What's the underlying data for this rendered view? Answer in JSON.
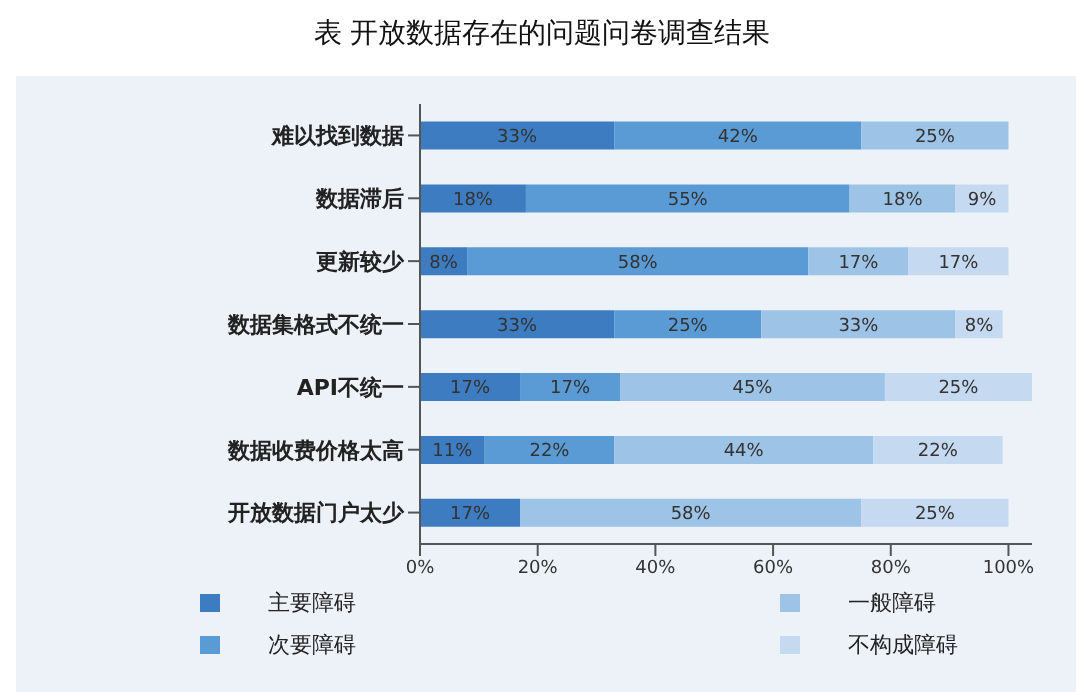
{
  "chart_data": {
    "type": "bar",
    "orientation": "horizontal",
    "stacked": true,
    "title": "表  开放数据存在的问题问卷调查结果",
    "categories": [
      "难以找到数据",
      "数据滞后",
      "更新较少",
      "数据集格式不统一",
      "API不统一",
      "数据收费价格太高",
      "开放数据门户太少"
    ],
    "series": [
      {
        "name": "主要障碍",
        "color": "#3d7cc0",
        "values": [
          33,
          18,
          8,
          33,
          17,
          11,
          17
        ],
        "value_labels": [
          "33%",
          "18%",
          "8%",
          "33%",
          "17%",
          "11%",
          "17%"
        ]
      },
      {
        "name": "次要障碍",
        "color": "#5b9bd5",
        "values": [
          42,
          55,
          58,
          25,
          17,
          22,
          null
        ],
        "value_labels": [
          "42%",
          "55%",
          "58%",
          "25%",
          "17%",
          "22%",
          null
        ]
      },
      {
        "name": "一般障碍",
        "color": "#9dc3e6",
        "values": [
          25,
          18,
          17,
          33,
          45,
          44,
          58
        ],
        "value_labels": [
          "25%",
          "18%",
          "17%",
          "33%",
          "45%",
          "44%",
          "58%"
        ]
      },
      {
        "name": "不构成障碍",
        "color": "#c5d9f0",
        "values": [
          null,
          9,
          17,
          8,
          25,
          22,
          25
        ],
        "value_labels": [
          null,
          "9%",
          "17%",
          "8%",
          "25%",
          "22%",
          "25%"
        ]
      }
    ],
    "xlim": [
      0,
      104
    ],
    "xticks": [
      {
        "value": 0,
        "label": "0%"
      },
      {
        "value": 20,
        "label": "20%"
      },
      {
        "value": 40,
        "label": "40%"
      },
      {
        "value": 60,
        "label": "60%"
      },
      {
        "value": 80,
        "label": "80%"
      },
      {
        "value": 100,
        "label": "100%"
      }
    ],
    "legend": "bottom"
  }
}
